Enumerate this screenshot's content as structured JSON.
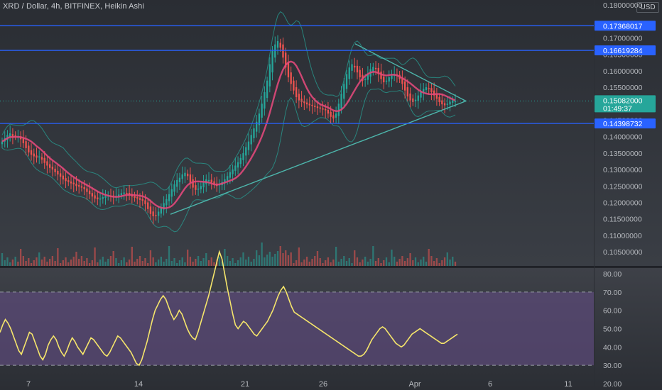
{
  "header": {
    "title": "XRD / Dollar, 4h, BITFINEX, Heikin Ashi",
    "currency": "USD"
  },
  "colors": {
    "up": "#26a69a",
    "down": "#ef5350",
    "hline": "#2962ff",
    "ma": "#e0487a",
    "band": "#26a69a",
    "trend": "#4db6ac",
    "rsi": "#f5e56b",
    "rsi_band": "#5c4a7a",
    "current": "#26a69a"
  },
  "chart_data": [
    {
      "type": "candlestick",
      "title": "XRD / Dollar, 4h, BITFINEX, Heikin Ashi",
      "y_ticks": [
        "0.18000000",
        "0.17000000",
        "0.16500000",
        "0.16000000",
        "0.15500000",
        "0.14500000",
        "0.14000000",
        "0.13500000",
        "0.13000000",
        "0.12500000",
        "0.12000000",
        "0.11500000",
        "0.11000000",
        "0.10500000"
      ],
      "x_ticks": [
        "7",
        "14",
        "21",
        "26",
        "Apr",
        "6",
        "11"
      ],
      "ylim": [
        0.1005,
        0.1815
      ],
      "horizontal_levels": [
        {
          "value": "0.17368017"
        },
        {
          "value": "0.16619284"
        },
        {
          "value": "0.14398732"
        }
      ],
      "current_price": {
        "value": "0.15082000",
        "countdown": "01:49:37"
      },
      "close_series": [
        0.1385,
        0.1395,
        0.1405,
        0.141,
        0.1398,
        0.1402,
        0.14,
        0.1392,
        0.138,
        0.1365,
        0.1352,
        0.1345,
        0.134,
        0.1336,
        0.134,
        0.133,
        0.132,
        0.1312,
        0.1305,
        0.13,
        0.1292,
        0.1285,
        0.1278,
        0.127,
        0.1265,
        0.1262,
        0.1258,
        0.1255,
        0.125,
        0.1248,
        0.1245,
        0.124,
        0.1232,
        0.1225,
        0.1218,
        0.1212,
        0.121,
        0.1212,
        0.1216,
        0.122,
        0.1222,
        0.122,
        0.1218,
        0.122,
        0.1224,
        0.1228,
        0.123,
        0.1228,
        0.1222,
        0.1218,
        0.1214,
        0.1212,
        0.1208,
        0.1205,
        0.1195,
        0.118,
        0.1165,
        0.1158,
        0.116,
        0.1172,
        0.1185,
        0.1198,
        0.121,
        0.1225,
        0.124,
        0.1255,
        0.1268,
        0.1275,
        0.1285,
        0.129,
        0.128,
        0.126,
        0.1245,
        0.1238,
        0.1242,
        0.125,
        0.1262,
        0.127,
        0.1268,
        0.126,
        0.1255,
        0.125,
        0.1255,
        0.1262,
        0.127,
        0.128,
        0.1292,
        0.13,
        0.1312,
        0.1322,
        0.1335,
        0.135,
        0.1368,
        0.1385,
        0.1405,
        0.1425,
        0.1445,
        0.147,
        0.15,
        0.1535,
        0.157,
        0.162,
        0.166,
        0.168,
        0.169,
        0.167,
        0.164,
        0.161,
        0.158,
        0.156,
        0.154,
        0.152,
        0.151,
        0.1505,
        0.1502,
        0.1498,
        0.1495,
        0.1493,
        0.149,
        0.1487,
        0.1485,
        0.1482,
        0.148,
        0.147,
        0.146,
        0.1455,
        0.147,
        0.15,
        0.153,
        0.156,
        0.159,
        0.161,
        0.162,
        0.161,
        0.1595,
        0.158,
        0.157,
        0.1575,
        0.159,
        0.1605,
        0.1612,
        0.1605,
        0.159,
        0.1575,
        0.1565,
        0.157,
        0.158,
        0.1588,
        0.159,
        0.1585,
        0.1575,
        0.156,
        0.154,
        0.1522,
        0.151,
        0.1505,
        0.1512,
        0.1525,
        0.1538,
        0.1545,
        0.155,
        0.1545,
        0.1535,
        0.1525,
        0.1515,
        0.1505,
        0.1498,
        0.1495,
        0.15,
        0.1506,
        0.151,
        0.1508
      ],
      "indicators": [
        "moving average",
        "bollinger bands",
        "symmetrical triangle trendlines"
      ]
    },
    {
      "type": "line",
      "title": "",
      "y_ticks": [
        "80.00",
        "70.00",
        "60.00",
        "50.00",
        "40.00",
        "30.00",
        "20.00"
      ],
      "ylim": [
        16.5,
        83.5
      ],
      "band": [
        30,
        70
      ],
      "series": [
        {
          "values": [
            48,
            52,
            55,
            53,
            50,
            46,
            42,
            38,
            36,
            40,
            44,
            48,
            47,
            43,
            39,
            35,
            33,
            36,
            41,
            44,
            46,
            44,
            40,
            37,
            35,
            38,
            42,
            45,
            43,
            40,
            38,
            36,
            39,
            42,
            45,
            44,
            42,
            40,
            38,
            36,
            35,
            37,
            40,
            43,
            46,
            45,
            43,
            41,
            39,
            37,
            34,
            31,
            30,
            33,
            38,
            43,
            49,
            55,
            60,
            63,
            66,
            68,
            66,
            62,
            58,
            55,
            57,
            60,
            58,
            54,
            50,
            47,
            45,
            44,
            48,
            53,
            58,
            63,
            68,
            74,
            80,
            86,
            92,
            88,
            80,
            72,
            65,
            58,
            52,
            50,
            52,
            54,
            53,
            51,
            49,
            47,
            46,
            48,
            50,
            52,
            54,
            57,
            60,
            64,
            68,
            71,
            73,
            70,
            66,
            62,
            59,
            58,
            57,
            56,
            55,
            54,
            53,
            52,
            51,
            50,
            49,
            48,
            47,
            46,
            45,
            44,
            43,
            42,
            41,
            40,
            39,
            38,
            37,
            36,
            35,
            35,
            36,
            38,
            41,
            44,
            46,
            48,
            50,
            51,
            50,
            48,
            46,
            44,
            42,
            41,
            40,
            41,
            43,
            45,
            47,
            48,
            49,
            50,
            49,
            48,
            47,
            46,
            45,
            44,
            43,
            42,
            42,
            43,
            44,
            45,
            46,
            47
          ]
        }
      ]
    }
  ]
}
